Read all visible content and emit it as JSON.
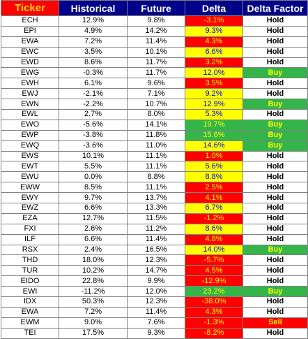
{
  "headers": {
    "ticker": "Ticker",
    "historical": "Historical",
    "future": "Future",
    "delta": "Delta",
    "delta_factor": "Delta Factor"
  },
  "colors": {
    "header_bg": "#00008b",
    "header_text": "#ffffff",
    "ticker_header_bg": "#ff0000",
    "ticker_header_text": "#ffd700",
    "delta_red": "#ff0000",
    "delta_yellow": "#ffff00",
    "delta_green": "#33b54a",
    "buy_bg": "#33b54a",
    "sell_bg": "#ff0000"
  },
  "rows": [
    {
      "ticker": "ECH",
      "historical": "12.9%",
      "future": "9.8%",
      "delta": "-3.1%",
      "delta_color": "red",
      "factor": "Hold"
    },
    {
      "ticker": "EPI",
      "historical": "4.9%",
      "future": "14.2%",
      "delta": "9.3%",
      "delta_color": "yellow",
      "factor": "Hold"
    },
    {
      "ticker": "EWA",
      "historical": "7.2%",
      "future": "11.4%",
      "delta": "4.3%",
      "delta_color": "red",
      "factor": "Hold"
    },
    {
      "ticker": "EWC",
      "historical": "3.5%",
      "future": "10.1%",
      "delta": "6.6%",
      "delta_color": "yellow",
      "factor": "Hold"
    },
    {
      "ticker": "EWD",
      "historical": "8.6%",
      "future": "11.7%",
      "delta": "3.2%",
      "delta_color": "red",
      "factor": "Hold"
    },
    {
      "ticker": "EWG",
      "historical": "-0.3%",
      "future": "11.7%",
      "delta": "12.0%",
      "delta_color": "yellow",
      "factor": "Buy"
    },
    {
      "ticker": "EWH",
      "historical": "6.1%",
      "future": "9.6%",
      "delta": "3.5%",
      "delta_color": "red",
      "factor": "Hold"
    },
    {
      "ticker": "EWJ",
      "historical": "-2.1%",
      "future": "7.1%",
      "delta": "9.2%",
      "delta_color": "yellow",
      "factor": "Hold"
    },
    {
      "ticker": "EWN",
      "historical": "-2.2%",
      "future": "10.7%",
      "delta": "12.9%",
      "delta_color": "yellow",
      "factor": "Buy"
    },
    {
      "ticker": "EWL",
      "historical": "2.7%",
      "future": "8.0%",
      "delta": "5.3%",
      "delta_color": "yellow",
      "factor": "Hold"
    },
    {
      "ticker": "EWO",
      "historical": "-5.6%",
      "future": "14.1%",
      "delta": "19.7%",
      "delta_color": "green",
      "factor": "Buy"
    },
    {
      "ticker": "EWP",
      "historical": "-3.8%",
      "future": "11.8%",
      "delta": "15.6%",
      "delta_color": "green",
      "factor": "Buy"
    },
    {
      "ticker": "EWQ",
      "historical": "-3.6%",
      "future": "11.0%",
      "delta": "14.6%",
      "delta_color": "yellow",
      "factor": "Buy"
    },
    {
      "ticker": "EWS",
      "historical": "10.1%",
      "future": "11.1%",
      "delta": "1.0%",
      "delta_color": "red",
      "factor": "Hold"
    },
    {
      "ticker": "EWT",
      "historical": "5.5%",
      "future": "11.1%",
      "delta": "5.6%",
      "delta_color": "yellow",
      "factor": "Hold"
    },
    {
      "ticker": "EWU",
      "historical": "0.0%",
      "future": "8.8%",
      "delta": "8.8%",
      "delta_color": "yellow",
      "factor": "Hold"
    },
    {
      "ticker": "EWW",
      "historical": "8.5%",
      "future": "11.1%",
      "delta": "2.5%",
      "delta_color": "red",
      "factor": "Hold"
    },
    {
      "ticker": "EWY",
      "historical": "9.7%",
      "future": "13.7%",
      "delta": "4.1%",
      "delta_color": "red",
      "factor": "Hold"
    },
    {
      "ticker": "EWZ",
      "historical": "6.6%",
      "future": "13.3%",
      "delta": "6.7%",
      "delta_color": "yellow",
      "factor": "Hold"
    },
    {
      "ticker": "EZA",
      "historical": "12.7%",
      "future": "11.5%",
      "delta": "-1.2%",
      "delta_color": "red",
      "factor": "Hold"
    },
    {
      "ticker": "FXI",
      "historical": "2.6%",
      "future": "11.2%",
      "delta": "8.6%",
      "delta_color": "yellow",
      "factor": "Hold"
    },
    {
      "ticker": "ILF",
      "historical": "6.6%",
      "future": "11.4%",
      "delta": "4.8%",
      "delta_color": "red",
      "factor": "Hold"
    },
    {
      "ticker": "RSX",
      "historical": "2.4%",
      "future": "16.5%",
      "delta": "14.0%",
      "delta_color": "yellow",
      "factor": "Buy"
    },
    {
      "ticker": "THD",
      "historical": "18.0%",
      "future": "12.3%",
      "delta": "-5.7%",
      "delta_color": "red",
      "factor": "Hold"
    },
    {
      "ticker": "TUR",
      "historical": "10.2%",
      "future": "14.7%",
      "delta": "4.5%",
      "delta_color": "red",
      "factor": "Hold"
    },
    {
      "ticker": "EIDO",
      "historical": "22.8%",
      "future": "9.9%",
      "delta": "-12.9%",
      "delta_color": "red",
      "factor": "Hold"
    },
    {
      "ticker": "EWI",
      "historical": "-11.2%",
      "future": "12.0%",
      "delta": "23.2%",
      "delta_color": "green",
      "factor": "Buy"
    },
    {
      "ticker": "IDX",
      "historical": "50.3%",
      "future": "12.3%",
      "delta": "-38.0%",
      "delta_color": "red",
      "factor": "Hold"
    },
    {
      "ticker": "EWA",
      "historical": "7.2%",
      "future": "11.4%",
      "delta": "4.3%",
      "delta_color": "red",
      "factor": "Hold"
    },
    {
      "ticker": "EWM",
      "historical": "9.0%",
      "future": "7.6%",
      "delta": "-1.3%",
      "delta_color": "red",
      "factor": "Sell"
    },
    {
      "ticker": "TEI",
      "historical": "17.5%",
      "future": "9.3%",
      "delta": "-8.2%",
      "delta_color": "red",
      "factor": "Hold"
    }
  ]
}
